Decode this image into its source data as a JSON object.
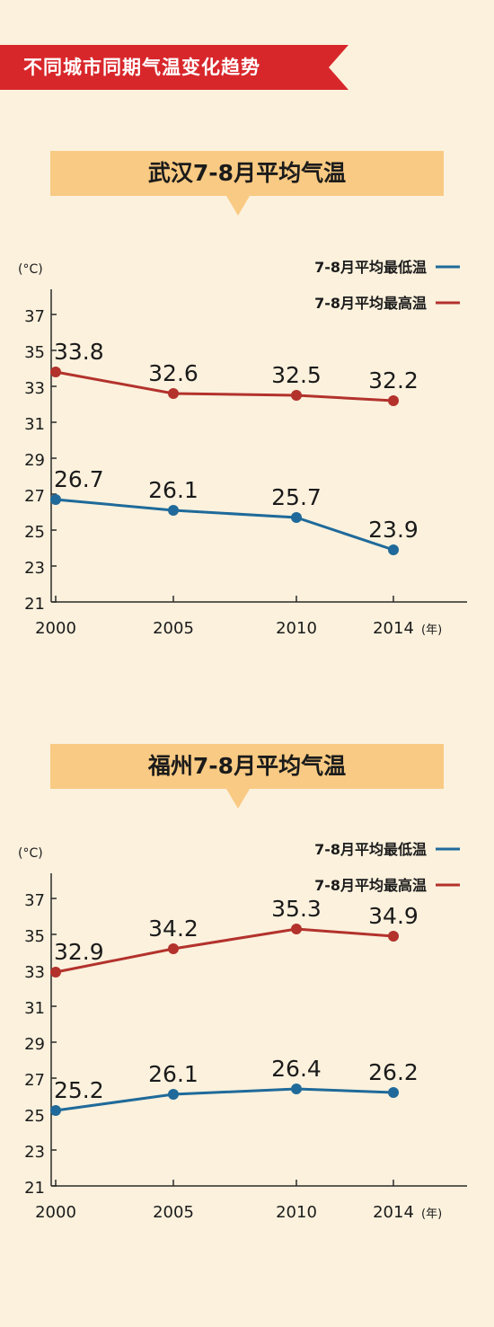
{
  "header": {
    "title": "不同城市同期气温变化趋势"
  },
  "colors": {
    "banner": "#d8272b",
    "subtitle_bg": "#f9ca83",
    "low_line": "#1f6a9a",
    "high_line": "#b3322c",
    "background": "#fbf1dd"
  },
  "chart_data": [
    {
      "type": "line",
      "title": "武汉7-8月平均气温",
      "ylabel": "(°C)",
      "xlabel": "(年)",
      "x": [
        "2000",
        "2005",
        "2010",
        "2014"
      ],
      "yticks": [
        21,
        23,
        25,
        27,
        29,
        31,
        33,
        35,
        37
      ],
      "ylim": [
        21,
        38
      ],
      "series": [
        {
          "name": "7-8月平均最低温",
          "values": [
            26.7,
            26.1,
            25.7,
            23.9
          ],
          "labels": [
            "26.7",
            "26.1",
            "25.7",
            "23.9"
          ],
          "color": "#1f6a9a"
        },
        {
          "name": "7-8月平均最高温",
          "values": [
            33.8,
            32.6,
            32.5,
            32.2
          ],
          "labels": [
            "33.8",
            "32.6",
            "32.5",
            "32.2"
          ],
          "color": "#b3322c"
        }
      ],
      "legend": "top-right"
    },
    {
      "type": "line",
      "title": "福州7-8月平均气温",
      "ylabel": "(°C)",
      "xlabel": "(年)",
      "x": [
        "2000",
        "2005",
        "2010",
        "2014"
      ],
      "yticks": [
        21,
        23,
        25,
        27,
        29,
        31,
        33,
        35,
        37
      ],
      "ylim": [
        21,
        38
      ],
      "series": [
        {
          "name": "7-8月平均最低温",
          "values": [
            25.2,
            26.1,
            26.4,
            26.2
          ],
          "labels": [
            "25.2",
            "26.1",
            "26.4",
            "26.2"
          ],
          "color": "#1f6a9a"
        },
        {
          "name": "7-8月平均最高温",
          "values": [
            32.9,
            34.2,
            35.3,
            34.9
          ],
          "labels": [
            "32.9",
            "34.2",
            "35.3",
            "34.9"
          ],
          "color": "#b3322c"
        }
      ],
      "legend": "top-right"
    }
  ]
}
